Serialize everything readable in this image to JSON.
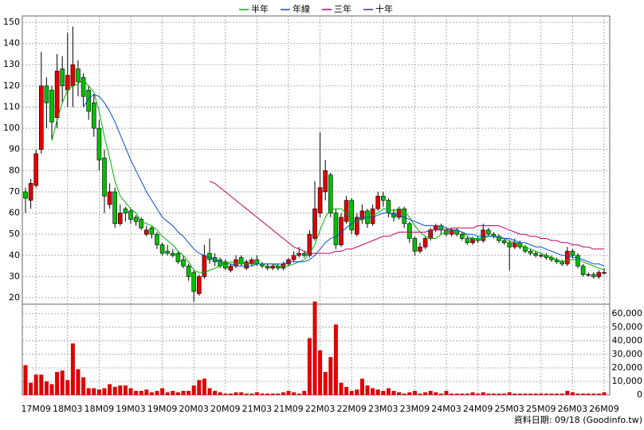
{
  "chart_data": {
    "type": "candlestick",
    "legend": "top",
    "up_color": "#e00000",
    "down_color": "#00c000",
    "volume_color": "#e00000",
    "footer": "資料日期: 09/18 (Goodinfo.tw)",
    "categories": [
      null,
      null,
      "17M09",
      null,
      null,
      null,
      null,
      null,
      "18M03",
      null,
      null,
      null,
      null,
      null,
      "18M09",
      null,
      null,
      null,
      null,
      null,
      "19M03",
      null,
      null,
      null,
      null,
      null,
      "19M09",
      null,
      null,
      null,
      null,
      null,
      "20M03",
      null,
      null,
      null,
      null,
      null,
      "20M09",
      null,
      null,
      null,
      null,
      null,
      "21M03",
      null,
      null,
      null,
      null,
      null,
      "21M09",
      null,
      null,
      null,
      null,
      null,
      "22M03",
      null,
      null,
      null,
      null,
      null,
      "22M09",
      null,
      null,
      null,
      null,
      null,
      "23M03",
      null,
      null,
      null,
      null,
      null,
      "23M09",
      null,
      null,
      null,
      null,
      null,
      "24M03",
      null,
      null,
      null,
      null,
      null,
      "24M09",
      null,
      null,
      null,
      null,
      null,
      "25M03",
      null,
      null,
      null,
      null,
      null,
      "25M09",
      null,
      null,
      null,
      null,
      null,
      "26M03",
      null,
      null,
      null,
      null,
      null,
      "26M09"
    ],
    "ohlc": [
      [
        70,
        72,
        60,
        67
      ],
      [
        66,
        76,
        62,
        74
      ],
      [
        73,
        90,
        72,
        88
      ],
      [
        90,
        136,
        88,
        120
      ],
      [
        120,
        124,
        100,
        112
      ],
      [
        118,
        120,
        95,
        103
      ],
      [
        105,
        135,
        100,
        127
      ],
      [
        128,
        134,
        112,
        120
      ],
      [
        118,
        145,
        110,
        125
      ],
      [
        120,
        148,
        110,
        130
      ],
      [
        128,
        132,
        115,
        122
      ],
      [
        124,
        126,
        110,
        115
      ],
      [
        118,
        120,
        104,
        108
      ],
      [
        112,
        116,
        96,
        100
      ],
      [
        100,
        104,
        80,
        85
      ],
      [
        86,
        90,
        60,
        68
      ],
      [
        64,
        74,
        62,
        70
      ],
      [
        70,
        72,
        53,
        55
      ],
      [
        55,
        64,
        54,
        60
      ],
      [
        62,
        63,
        56,
        60
      ],
      [
        61,
        62,
        55,
        57
      ],
      [
        58,
        59,
        54,
        56
      ],
      [
        57,
        58,
        52,
        53
      ],
      [
        50,
        54,
        49,
        52
      ],
      [
        53,
        54,
        48,
        50
      ],
      [
        50,
        51,
        43,
        45
      ],
      [
        45,
        46,
        40,
        41
      ],
      [
        42,
        45,
        40,
        41
      ],
      [
        41,
        43,
        39,
        40
      ],
      [
        41,
        42,
        36,
        37
      ],
      [
        38,
        40,
        34,
        35
      ],
      [
        35,
        36,
        28,
        30
      ],
      [
        32,
        33,
        18,
        23
      ],
      [
        22,
        31,
        21,
        30
      ],
      [
        30,
        45,
        29,
        40
      ],
      [
        41,
        48,
        36,
        38
      ],
      [
        39,
        41,
        35,
        37
      ],
      [
        38,
        39,
        34,
        35
      ],
      [
        37,
        38,
        33,
        34
      ],
      [
        33,
        36,
        32,
        35
      ],
      [
        35,
        40,
        34,
        38
      ],
      [
        39,
        40,
        35,
        36
      ],
      [
        34,
        38,
        33,
        37
      ],
      [
        36,
        39,
        35,
        38
      ],
      [
        38,
        40,
        35,
        36
      ],
      [
        36,
        37,
        34,
        35
      ],
      [
        35,
        36,
        33,
        34
      ],
      [
        34,
        36,
        33,
        35
      ],
      [
        35,
        36,
        33,
        34
      ],
      [
        34,
        37,
        33,
        36
      ],
      [
        36,
        39,
        35,
        38
      ],
      [
        38,
        42,
        37,
        40
      ],
      [
        40,
        44,
        39,
        41
      ],
      [
        41,
        42,
        39,
        40
      ],
      [
        40,
        52,
        39,
        50
      ],
      [
        48,
        75,
        47,
        62
      ],
      [
        60,
        98,
        58,
        72
      ],
      [
        70,
        85,
        66,
        80
      ],
      [
        78,
        79,
        58,
        60
      ],
      [
        60,
        62,
        43,
        45
      ],
      [
        45,
        60,
        44,
        58
      ],
      [
        56,
        68,
        55,
        66
      ],
      [
        66,
        67,
        50,
        52
      ],
      [
        50,
        60,
        49,
        58
      ],
      [
        57,
        64,
        55,
        61
      ],
      [
        61,
        62,
        53,
        55
      ],
      [
        55,
        64,
        54,
        62
      ],
      [
        62,
        70,
        61,
        68
      ],
      [
        68,
        70,
        63,
        66
      ],
      [
        66,
        67,
        58,
        60
      ],
      [
        60,
        62,
        56,
        58
      ],
      [
        58,
        63,
        57,
        62
      ],
      [
        62,
        63,
        53,
        55
      ],
      [
        55,
        56,
        46,
        48
      ],
      [
        48,
        49,
        40,
        42
      ],
      [
        42,
        46,
        41,
        44
      ],
      [
        44,
        49,
        43,
        48
      ],
      [
        48,
        53,
        47,
        52
      ],
      [
        52,
        55,
        51,
        54
      ],
      [
        54,
        55,
        50,
        52
      ],
      [
        52,
        53,
        49,
        50
      ],
      [
        50,
        53,
        49,
        52
      ],
      [
        52,
        53,
        49,
        50
      ],
      [
        50,
        51,
        47,
        48
      ],
      [
        48,
        49,
        45,
        46
      ],
      [
        46,
        49,
        45,
        48
      ],
      [
        48,
        49,
        46,
        47
      ],
      [
        47,
        55,
        46,
        52
      ],
      [
        52,
        53,
        49,
        50
      ],
      [
        50,
        51,
        48,
        49
      ],
      [
        49,
        50,
        46,
        47
      ],
      [
        47,
        48,
        45,
        46
      ],
      [
        46,
        47,
        33,
        44
      ],
      [
        44,
        48,
        43,
        46
      ],
      [
        46,
        47,
        43,
        44
      ],
      [
        44,
        45,
        41,
        42
      ],
      [
        42,
        43,
        40,
        41
      ],
      [
        41,
        42,
        39,
        40
      ],
      [
        40,
        41,
        39,
        40
      ],
      [
        40,
        41,
        38,
        39
      ],
      [
        39,
        40,
        37,
        38
      ],
      [
        38,
        39,
        36,
        37
      ],
      [
        37,
        38,
        35,
        36
      ],
      [
        36,
        44,
        35,
        42
      ],
      [
        42,
        43,
        39,
        40
      ],
      [
        40,
        41,
        34,
        35
      ],
      [
        35,
        36,
        30,
        31
      ],
      [
        31,
        32,
        30,
        31
      ],
      [
        31,
        32,
        29,
        30
      ],
      [
        30,
        33,
        29,
        32
      ],
      [
        32,
        34,
        31,
        32
      ]
    ],
    "volume": [
      22000,
      9000,
      15000,
      15000,
      10000,
      8000,
      17000,
      18000,
      11000,
      38000,
      19000,
      13000,
      5000,
      5000,
      4000,
      5000,
      8000,
      6000,
      7000,
      7000,
      5000,
      3000,
      3000,
      4000,
      2000,
      3000,
      5000,
      2000,
      3000,
      2000,
      3000,
      3000,
      7000,
      11000,
      12000,
      5000,
      3000,
      2000,
      1000,
      1000,
      2000,
      2000,
      1000,
      1000,
      2000,
      1000,
      1000,
      1000,
      1000,
      2000,
      3000,
      2000,
      1000,
      3000,
      42000,
      69000,
      33000,
      17000,
      28000,
      52000,
      9000,
      6000,
      3000,
      4000,
      12000,
      7000,
      5000,
      4000,
      3000,
      5000,
      3000,
      2000,
      1000,
      2000,
      3000,
      1000,
      2000,
      3000,
      2000,
      1000,
      3000,
      1000,
      1000,
      1000,
      1000,
      2000,
      1000,
      2000,
      1000,
      1000,
      1000,
      1000,
      2000,
      1000,
      1000,
      1000,
      1000,
      1000,
      1000,
      1000,
      1000,
      1000,
      1000,
      3000,
      2000,
      1000,
      1000,
      1000,
      1000,
      1000,
      2000
    ],
    "series": [
      {
        "name": "半年",
        "color": "#00b000",
        "values": [
          null,
          null,
          null,
          null,
          null,
          94,
          104,
          112,
          118,
          120,
          121,
          123,
          120,
          117,
          108,
          96,
          86,
          75,
          68,
          65,
          62,
          60,
          56,
          55,
          54,
          52,
          49,
          47,
          45,
          42,
          40,
          37,
          33,
          32,
          32,
          33,
          34,
          35,
          36,
          37,
          36,
          36,
          36,
          36,
          36,
          36,
          36,
          36,
          35,
          35,
          35,
          36,
          37,
          38,
          41,
          45,
          52,
          58,
          62,
          62,
          62,
          60,
          57,
          56,
          57,
          58,
          59,
          60,
          62,
          62,
          61,
          62,
          61,
          58,
          54,
          51,
          49,
          48,
          48,
          50,
          51,
          52,
          52,
          51,
          49,
          48,
          48,
          48,
          49,
          49,
          48,
          48,
          47,
          46,
          45,
          44,
          43,
          42,
          41,
          40,
          39,
          38,
          37,
          38,
          38,
          38,
          37,
          36,
          35,
          34,
          33
        ]
      },
      {
        "name": "年線",
        "color": "#0050d0",
        "values": [
          null,
          null,
          null,
          null,
          null,
          null,
          null,
          null,
          null,
          null,
          null,
          110,
          114,
          116,
          115,
          112,
          108,
          103,
          97,
          91,
          85,
          80,
          75,
          70,
          66,
          62,
          58,
          56,
          54,
          51,
          49,
          46,
          43,
          41,
          40,
          39,
          38,
          37,
          36,
          36,
          35,
          35,
          35,
          35,
          36,
          36,
          36,
          36,
          36,
          36,
          37,
          37,
          37,
          37,
          38,
          40,
          43,
          46,
          48,
          49,
          51,
          53,
          55,
          57,
          58,
          58,
          58,
          59,
          60,
          60,
          59,
          59,
          58,
          57,
          56,
          55,
          54,
          54,
          54,
          54,
          53,
          52,
          52,
          51,
          50,
          50,
          49,
          49,
          49,
          49,
          49,
          48,
          48,
          47,
          46,
          46,
          45,
          44,
          44,
          43,
          42,
          41,
          40,
          40,
          39,
          39,
          38,
          37,
          36,
          36,
          35
        ]
      },
      {
        "name": "三年",
        "color": "#c0006a",
        "values": [
          null,
          null,
          null,
          null,
          null,
          null,
          null,
          null,
          null,
          null,
          null,
          null,
          null,
          null,
          null,
          null,
          null,
          null,
          null,
          null,
          null,
          null,
          null,
          null,
          null,
          null,
          null,
          null,
          null,
          null,
          null,
          null,
          null,
          null,
          null,
          75,
          74,
          72,
          70,
          68,
          66,
          64,
          62,
          60,
          58,
          56,
          54,
          52,
          50,
          48,
          46,
          44,
          43,
          42,
          41,
          41,
          41,
          41,
          41,
          42,
          42,
          43,
          43,
          44,
          45,
          46,
          47,
          48,
          49,
          49,
          50,
          51,
          51,
          51,
          51,
          51,
          51,
          52,
          52,
          52,
          52,
          53,
          53,
          53,
          53,
          53,
          54,
          54,
          54,
          54,
          54,
          53,
          52,
          51,
          50,
          50,
          49,
          49,
          48,
          48,
          47,
          47,
          46,
          46,
          45,
          45,
          44,
          44,
          43,
          43,
          43
        ]
      },
      {
        "name": "十年",
        "color": "#602090",
        "values": [
          null,
          null,
          null,
          null,
          null,
          null,
          null,
          null,
          null,
          null,
          null,
          null,
          null,
          null,
          null,
          null,
          null,
          null,
          null,
          null,
          null,
          null,
          null,
          null,
          null,
          null,
          null,
          null,
          null,
          null,
          null,
          null,
          null,
          null,
          null,
          null,
          null,
          null,
          null,
          null,
          null,
          null,
          null,
          null,
          null,
          null,
          null,
          null,
          null,
          null,
          null,
          null,
          null,
          null,
          null,
          null,
          null,
          null,
          null,
          null,
          null,
          null,
          null,
          null,
          null,
          null,
          null,
          null,
          null,
          null,
          null,
          null,
          null,
          null,
          null,
          null,
          null,
          null,
          null,
          null,
          null,
          null,
          null,
          null,
          null,
          null,
          null,
          null,
          null,
          null,
          null,
          null,
          null,
          null,
          null,
          null,
          null,
          null,
          null,
          null,
          null,
          null,
          null,
          null,
          null,
          null,
          null,
          null,
          null,
          null,
          null
        ]
      }
    ],
    "ylim": [
      17,
      153
    ],
    "yticks": [
      20,
      30,
      40,
      50,
      60,
      70,
      80,
      90,
      100,
      110,
      120,
      130,
      140,
      150
    ],
    "y2lim": [
      0,
      67000
    ],
    "y2ticks": [
      0,
      {
        "value": 10000,
        "label": "10,000"
      },
      {
        "value": 20000,
        "label": "20,000"
      },
      {
        "value": 30000,
        "label": "30,000"
      },
      {
        "value": 40000,
        "label": "40,000"
      },
      {
        "value": 50000,
        "label": "50,000"
      },
      {
        "value": 60000,
        "label": "60,000"
      }
    ],
    "grid": true
  }
}
